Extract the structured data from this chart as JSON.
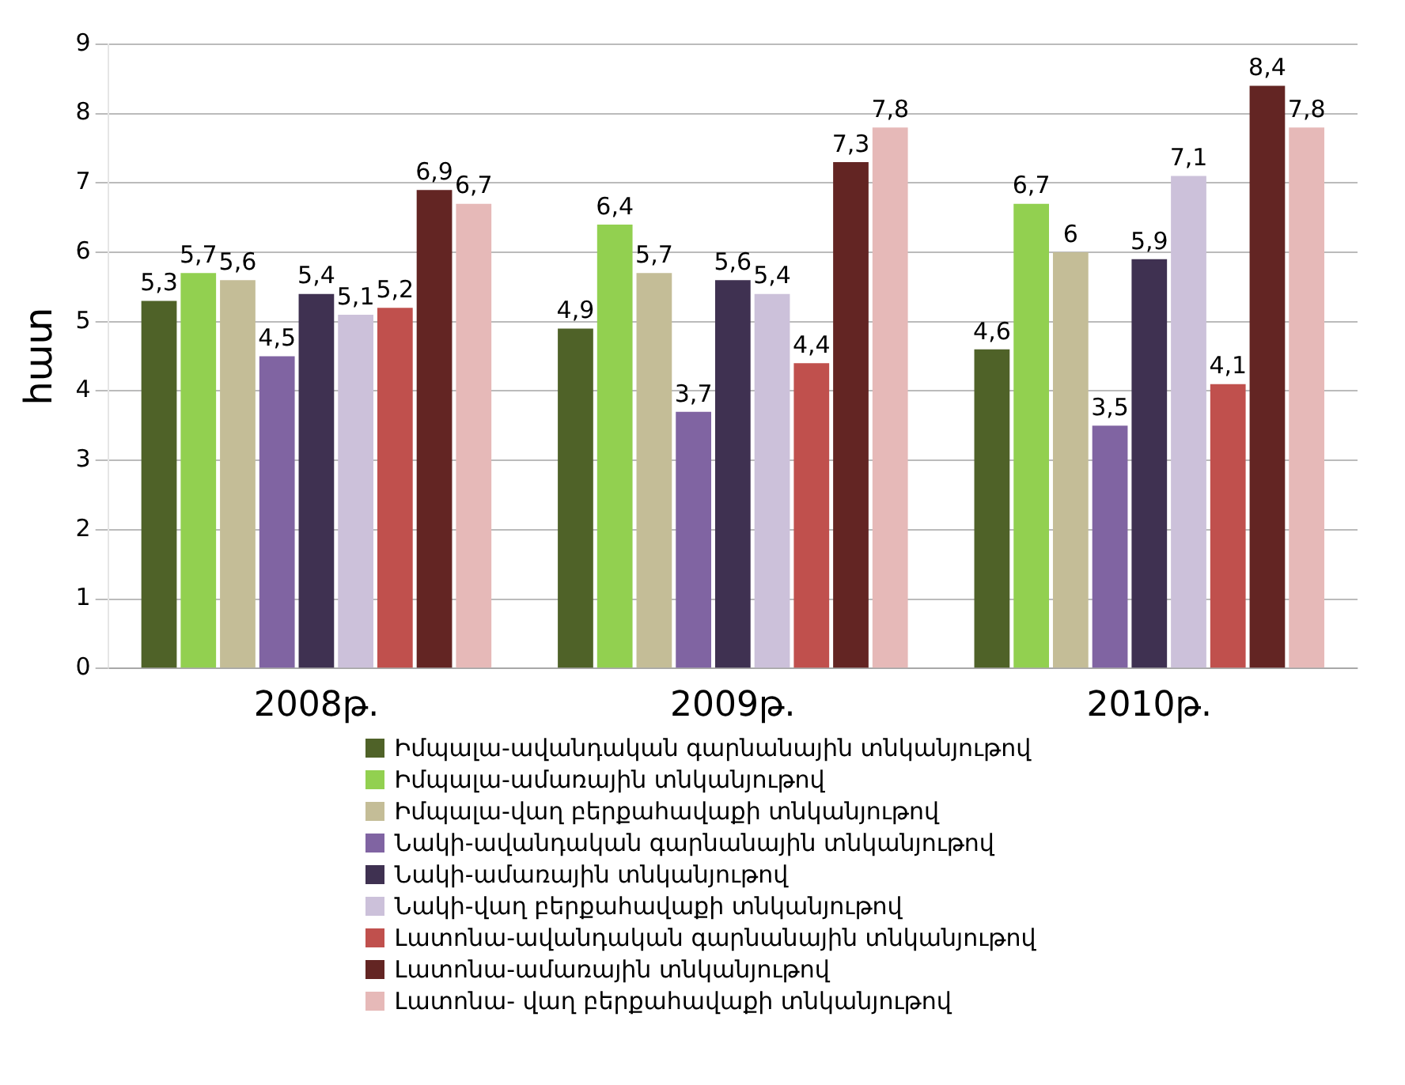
{
  "chart_data": {
    "type": "bar",
    "ylabel": "հատ",
    "categories": [
      "2008թ.",
      "2009թ.",
      "2010թ."
    ],
    "series": [
      {
        "name": "Իմպալա-ավանդական գարնանային տնկանյութով",
        "color": "#4f6228",
        "values": [
          5.3,
          4.9,
          4.6
        ],
        "value_labels": [
          "5,3",
          "4,9",
          "4,6"
        ]
      },
      {
        "name": "Իմպալա-ամառային տնկանյութով",
        "color": "#92d050",
        "values": [
          5.7,
          6.4,
          6.7
        ],
        "value_labels": [
          "5,7",
          "6,4",
          "6,7"
        ]
      },
      {
        "name": "Իմպալա-վաղ բերքահավաքի տնկանյութով",
        "color": "#c4bd97",
        "values": [
          5.6,
          5.7,
          6
        ],
        "value_labels": [
          "5,6",
          "5,7",
          "6"
        ]
      },
      {
        "name": "Նակի-ավանդական գարնանային տնկանյութով",
        "color": "#8064a2",
        "values": [
          4.5,
          3.7,
          3.5
        ],
        "value_labels": [
          "4,5",
          "3,7",
          "3,5"
        ]
      },
      {
        "name": "Նակի-ամառային տնկանյութով",
        "color": "#3f3151",
        "values": [
          5.4,
          5.6,
          5.9
        ],
        "value_labels": [
          "5,4",
          "5,6",
          "5,9"
        ]
      },
      {
        "name": "Նակի-վաղ բերքահավաքի տնկանյութով",
        "color": "#ccc1da",
        "values": [
          5.1,
          5.4,
          7.1
        ],
        "value_labels": [
          "5,1",
          "5,4",
          "7,1"
        ]
      },
      {
        "name": "Լատոնա-ավանդական գարնանային տնկանյութով",
        "color": "#c0504d",
        "values": [
          5.2,
          4.4,
          4.1
        ],
        "value_labels": [
          "5,2",
          "4,4",
          "4,1"
        ]
      },
      {
        "name": "Լատոնա-ամառային տնկանյութով",
        "color": "#632523",
        "values": [
          6.9,
          7.3,
          8.4
        ],
        "value_labels": [
          "6,9",
          "7,3",
          "8,4"
        ]
      },
      {
        "name": "Լատոնա- վաղ բերքահավաքի տնկանյութով",
        "color": "#e6b9b8",
        "values": [
          6.7,
          7.8,
          7.8
        ],
        "value_labels": [
          "6,7",
          "7,8",
          "7,8"
        ]
      }
    ],
    "ylim": [
      0,
      9
    ],
    "yticks": [
      0,
      1,
      2,
      3,
      4,
      5,
      6,
      7,
      8,
      9
    ],
    "grid": "y",
    "legend": "bottom"
  }
}
